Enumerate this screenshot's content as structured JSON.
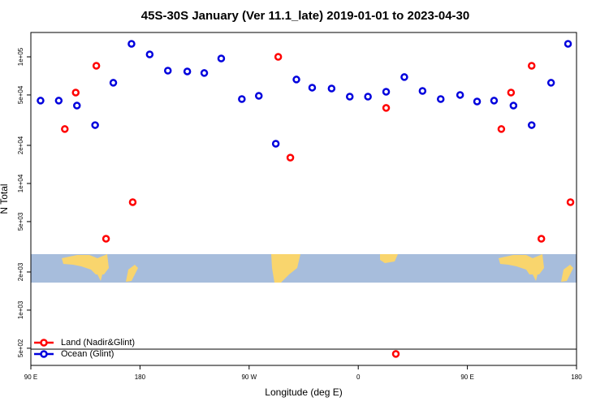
{
  "chart_data": {
    "type": "scatter",
    "title": "45S-30S January (Ver 11.1_late)   2019-01-01 to 2023-04-30",
    "x_label": "Longitude (deg E)",
    "y_label": "N Total",
    "log_y": true,
    "xlim": [
      90,
      540
    ],
    "ylim": [
      366,
      155700
    ],
    "xticks": [
      {
        "value": 90,
        "label": "90 E"
      },
      180,
      {
        "value": 270,
        "label": "90 W"
      },
      {
        "value": 360,
        "label": "0"
      },
      {
        "value": 450,
        "label": "90 E"
      },
      {
        "value": 540,
        "label": "180"
      }
    ],
    "yticks": [
      {
        "value": 500,
        "label": "5e+02"
      },
      {
        "value": 1000,
        "label": "1e+03"
      },
      {
        "value": 2000,
        "label": "2e+03"
      },
      {
        "value": 5000,
        "label": "5e+03"
      },
      {
        "value": 10000,
        "label": "1e+04"
      },
      {
        "value": 20000,
        "label": "2e+04"
      },
      {
        "value": 50000,
        "label": "5e+04"
      },
      {
        "value": 100000,
        "label": "1e+05"
      }
    ],
    "legend": "bottom-left",
    "series": [
      {
        "name": "Land (Nadir&Glint)",
        "color": "#ff0000",
        "x": [
          118,
          127,
          144,
          152,
          174,
          294,
          304,
          383,
          391,
          478,
          486,
          503,
          511,
          535
        ],
        "values": [
          26900,
          52200,
          85000,
          3660,
          7120,
          100000,
          16000,
          39500,
          451,
          26900,
          52200,
          85000,
          3660,
          7120
        ]
      },
      {
        "name": "Ocean (Glint)",
        "color": "#0000dd",
        "x": [
          98,
          113,
          128,
          143,
          158,
          173,
          188,
          203,
          219,
          233,
          247,
          264,
          278,
          292,
          309,
          322,
          338,
          353,
          368,
          383,
          398,
          413,
          428,
          444,
          458,
          472,
          488,
          503,
          519,
          533
        ],
        "values": [
          45100,
          45100,
          41200,
          28900,
          62400,
          126700,
          104500,
          77800,
          76700,
          74500,
          97100,
          46400,
          49200,
          20600,
          66200,
          57100,
          56200,
          48500,
          48500,
          53000,
          69200,
          53800,
          46400,
          50000,
          44400,
          45100,
          41200,
          28900,
          62400,
          126700
        ]
      }
    ]
  }
}
